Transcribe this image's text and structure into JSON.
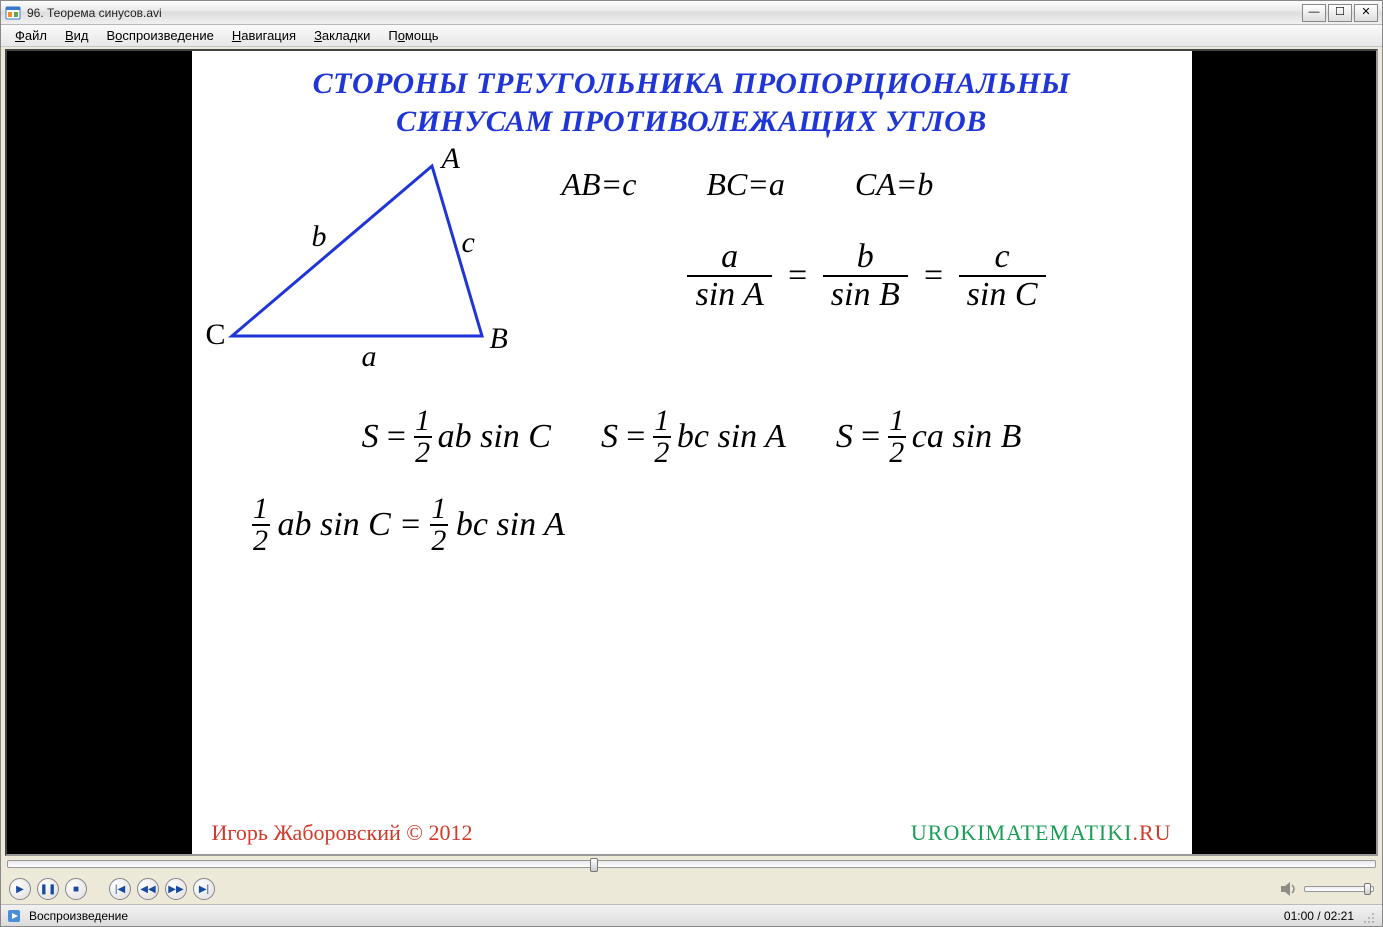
{
  "window": {
    "title": "96. Теорема синусов.avi"
  },
  "menu": {
    "items": [
      "Файл",
      "Вид",
      "Воспроизведение",
      "Навигация",
      "Закладки",
      "Помощь"
    ],
    "underline_index": [
      0,
      0,
      0,
      0,
      0,
      0
    ]
  },
  "slide": {
    "headline_line1": "СТОРОНЫ ТРЕУГОЛЬНИКА ПРОПОРЦИОНАЛЬНЫ",
    "headline_line2": "СИНУСАМ ПРОТИВОЛЕЖАЩИХ УГЛОВ",
    "headline_color": "#1f35d6",
    "triangle": {
      "stroke_color": "#1f35d6",
      "stroke_width": 3,
      "points": {
        "A": [
          220,
          20
        ],
        "B": [
          270,
          190
        ],
        "C": [
          20,
          190
        ]
      },
      "vertex_labels": {
        "A": "A",
        "B": "B",
        "C": "C"
      },
      "side_labels": {
        "a": "a",
        "b": "b",
        "c": "c"
      }
    },
    "side_equalities": [
      "AB=c",
      "BC=a",
      "CA=b"
    ],
    "law_of_sines": {
      "num": [
        "a",
        "b",
        "c"
      ],
      "den": [
        "sin A",
        "sin B",
        "sin C"
      ]
    },
    "area_formulas": [
      {
        "lhs": "S",
        "tail": "ab sin C"
      },
      {
        "lhs": "S",
        "tail": "bc sin A"
      },
      {
        "lhs": "S",
        "tail": "ca sin B"
      }
    ],
    "derivation": {
      "left_tail": "ab sin C",
      "right_tail": "bc sin A"
    },
    "author": "Игорь Жаборовский © 2012",
    "site_main": "UROKIMATEMATIKI",
    "site_suffix": ".RU",
    "author_color": "#d03a28",
    "site_color": "#1a9e55"
  },
  "playback": {
    "position_ratio": 0.426,
    "current": "01:00",
    "total": "02:21",
    "volume_ratio": 0.95
  },
  "status": {
    "text": "Воспроизведение"
  },
  "controls": {
    "play": "▶",
    "pause": "❚❚",
    "stop": "■",
    "prev": "|◀",
    "rew": "◀◀",
    "fwd": "▶▶",
    "next": "▶|"
  }
}
